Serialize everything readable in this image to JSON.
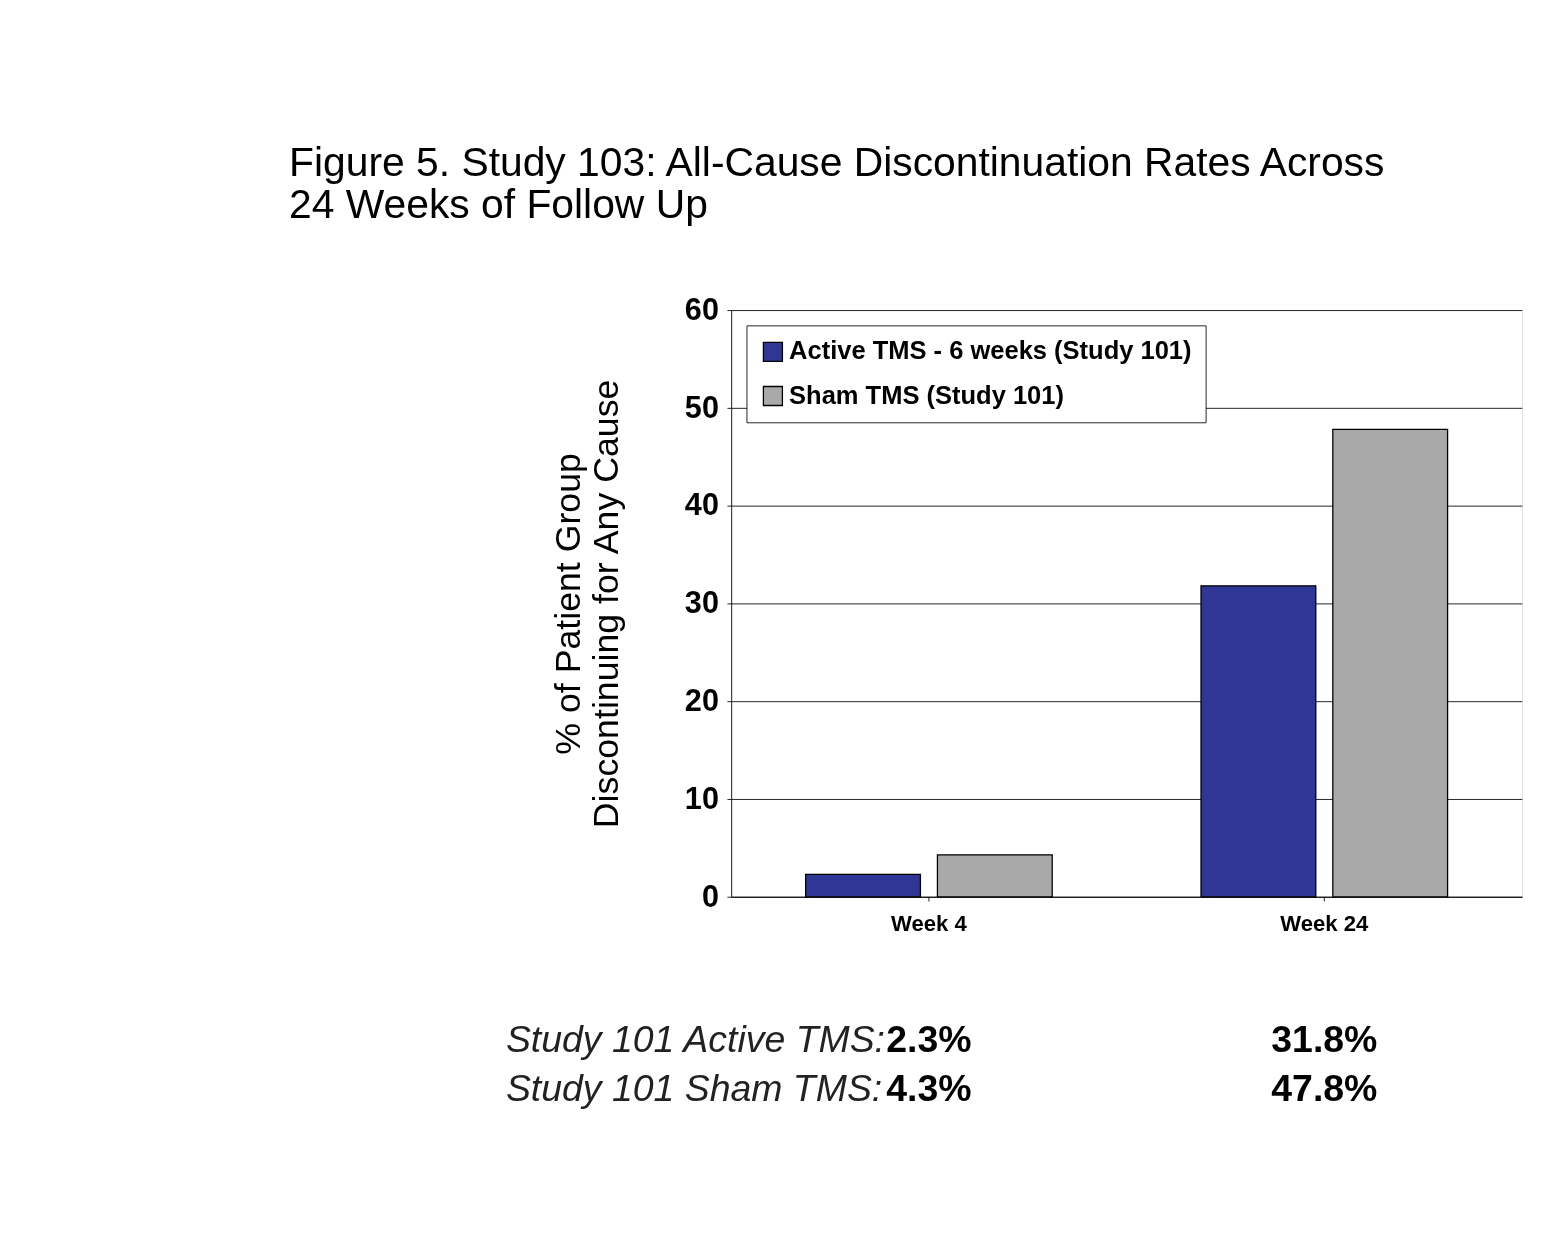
{
  "chart_data": {
    "type": "bar",
    "title": "Figure 5.  Study 103: All-Cause Discontinuation Rates Across 24 Weeks of Follow Up",
    "ylabel": "% of Patient Group\nDiscontinuing for Any Cause",
    "categories": [
      "Week 4",
      "Week 24"
    ],
    "series": [
      {
        "name": "Active TMS - 6 weeks (Study 101)",
        "color": "#2e3696",
        "values": [
          2.3,
          31.8
        ],
        "value_labels": [
          "2.3%",
          "31.8%"
        ]
      },
      {
        "name": "Sham TMS (Study 101)",
        "color": "#a9a9a9",
        "values": [
          4.3,
          47.8
        ],
        "value_labels": [
          "4.3%",
          "47.8%"
        ]
      }
    ],
    "annotations": [
      "Study 101 Active TMS:",
      "Study 101 Sham TMS:"
    ],
    "ylim": [
      0,
      60
    ],
    "yticks": [
      0,
      10,
      20,
      30,
      40,
      50,
      60
    ],
    "grid": "y",
    "legend": "top left"
  }
}
